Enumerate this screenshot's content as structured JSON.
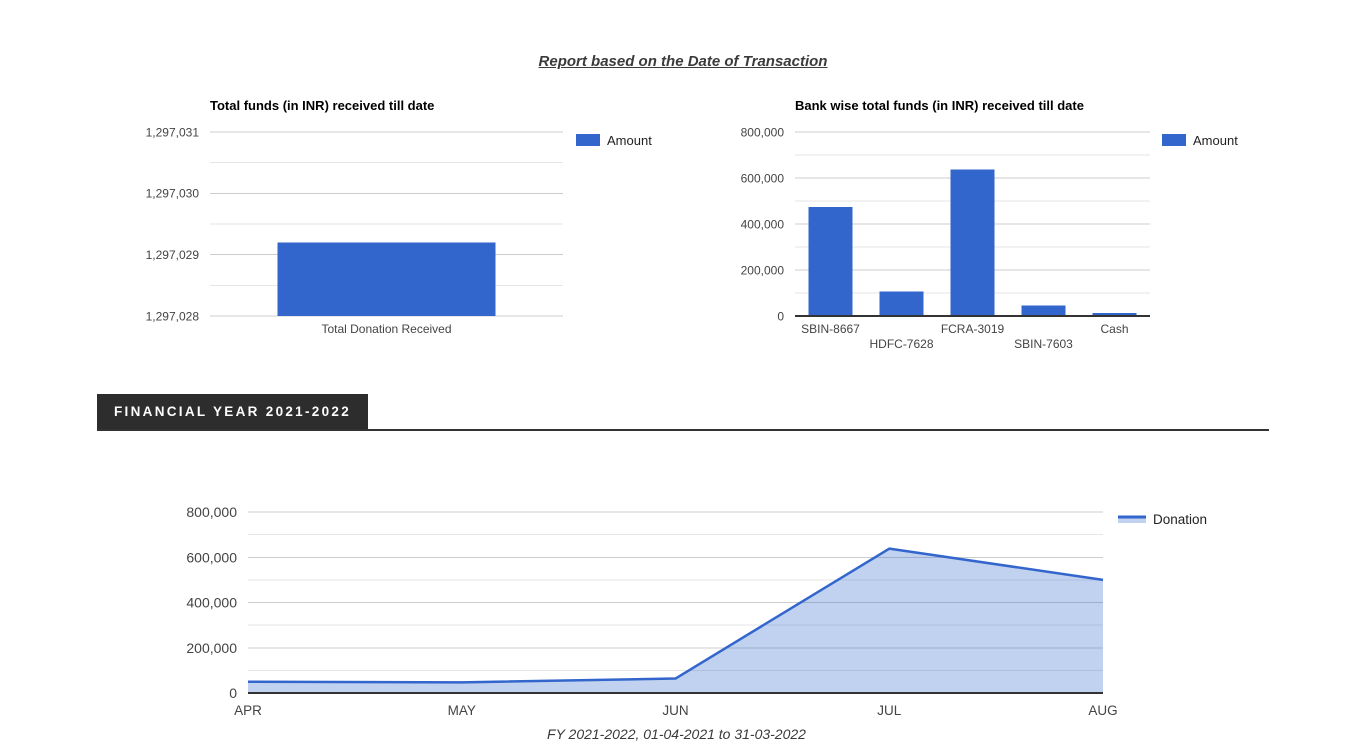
{
  "report_link": {
    "text": "Report based on the Date of Transaction"
  },
  "section": {
    "tab_label": "FINANCIAL YEAR 2021-2022"
  },
  "footer": {
    "caption": "FY 2021-2022, 01-04-2021 to 31-03-2022"
  },
  "colors": {
    "bar_blue": "#3366CC",
    "area_line": "#3366CC",
    "area_fill": "rgba(51,102,204,0.30)",
    "grid_major": "#CCCCCC",
    "grid_minor": "#E6E6E6",
    "baseline": "#333333",
    "axis_text": "#444444",
    "legend_text": "#222222",
    "title_text": "#000000"
  },
  "chart_data": [
    {
      "id": "total-funds-chart",
      "type": "bar",
      "title": "Total funds (in INR) received till date",
      "series_name": "Amount",
      "categories": [
        "Total Donation Received"
      ],
      "values": [
        1297029.2
      ],
      "ylim": [
        1297028,
        1297031
      ],
      "y_minor_step": 0.5,
      "y_ticks": [
        {
          "label": "1,297,028",
          "value": 1297028
        },
        {
          "label": "1,297,029",
          "value": 1297029
        },
        {
          "label": "1,297,030",
          "value": 1297030
        },
        {
          "label": "1,297,031",
          "value": 1297031
        }
      ],
      "staggered_x_labels": false,
      "legend_position": "right",
      "grid": true
    },
    {
      "id": "bank-wise-chart",
      "type": "bar",
      "title": "Bank wise total funds (in INR) received till date",
      "series_name": "Amount",
      "categories": [
        "SBIN-8667",
        "HDFC-7628",
        "FCRA-3019",
        "SBIN-7603",
        "Cash"
      ],
      "values": [
        475000,
        107000,
        638000,
        46000,
        12000
      ],
      "ylim": [
        0,
        800000
      ],
      "y_minor_step": 100000,
      "y_ticks": [
        {
          "label": "0",
          "value": 0
        },
        {
          "label": "200,000",
          "value": 200000
        },
        {
          "label": "400,000",
          "value": 400000
        },
        {
          "label": "600,000",
          "value": 600000
        },
        {
          "label": "800,000",
          "value": 800000
        }
      ],
      "staggered_x_labels": true,
      "legend_position": "right",
      "grid": true
    },
    {
      "id": "fy-monthly-chart",
      "type": "area",
      "title": "",
      "x": [
        "APR",
        "MAY",
        "JUN",
        "JUL",
        "AUG"
      ],
      "series": [
        {
          "name": "Donation",
          "values": [
            50000,
            47000,
            64000,
            638000,
            500000
          ]
        }
      ],
      "ylim": [
        0,
        800000
      ],
      "y_minor_step": 100000,
      "y_ticks": [
        {
          "label": "0",
          "value": 0
        },
        {
          "label": "200,000",
          "value": 200000
        },
        {
          "label": "400,000",
          "value": 400000
        },
        {
          "label": "600,000",
          "value": 600000
        },
        {
          "label": "800,000",
          "value": 800000
        }
      ],
      "legend_position": "right",
      "grid": true
    }
  ]
}
